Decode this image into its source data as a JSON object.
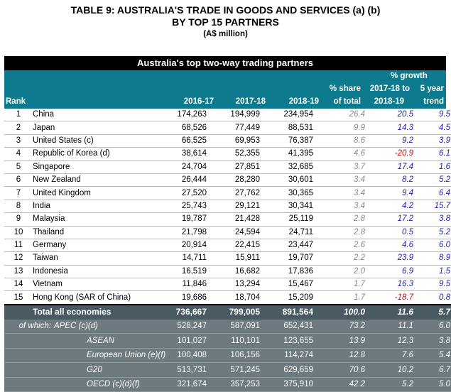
{
  "title": {
    "line1": "TABLE 9: AUSTRALIA'S TRADE IN GOODS AND SERVICES (a) (b)",
    "line2": "BY TOP 15 PARTNERS",
    "unit": "(A$ million)"
  },
  "banner": "Australia's top two-way trading partners",
  "header": {
    "rank": "Rank",
    "y1": "2016-17",
    "y2": "2017-18",
    "y3": "2018-19",
    "share_top": "% share",
    "share_bottom": "of total",
    "growth": "% growth",
    "g1_top": "2017-18 to",
    "g1_bottom": "2018-19",
    "g5_top": "5 year",
    "g5_bottom": "trend"
  },
  "rows": [
    {
      "rank": "1",
      "partner": "China",
      "y1": "174,263",
      "y2": "194,999",
      "y3": "234,954",
      "share": "26.4",
      "g1": "20.5",
      "g5": "9.5"
    },
    {
      "rank": "2",
      "partner": "Japan",
      "y1": "68,526",
      "y2": "77,449",
      "y3": "88,531",
      "share": "9.9",
      "g1": "14.3",
      "g5": "4.5"
    },
    {
      "rank": "3",
      "partner": "United States (c)",
      "y1": "66,525",
      "y2": "69,953",
      "y3": "76,387",
      "share": "8.6",
      "g1": "9.2",
      "g5": "3.9"
    },
    {
      "rank": "4",
      "partner": "Republic of Korea (d)",
      "y1": "38,614",
      "y2": "52,355",
      "y3": "41,395",
      "share": "4.6",
      "g1": "-20.9",
      "g5": "6.1"
    },
    {
      "rank": "5",
      "partner": "Singapore",
      "y1": "24,704",
      "y2": "27,851",
      "y3": "32,685",
      "share": "3.7",
      "g1": "17.4",
      "g5": "1.6"
    },
    {
      "rank": "6",
      "partner": "New Zealand",
      "y1": "26,444",
      "y2": "28,280",
      "y3": "30,601",
      "share": "3.4",
      "g1": "8.2",
      "g5": "5.2"
    },
    {
      "rank": "7",
      "partner": "United Kingdom",
      "y1": "27,520",
      "y2": "27,762",
      "y3": "30,365",
      "share": "3.4",
      "g1": "9.4",
      "g5": "6.4"
    },
    {
      "rank": "8",
      "partner": "India",
      "y1": "25,743",
      "y2": "29,121",
      "y3": "30,341",
      "share": "3.4",
      "g1": "4.2",
      "g5": "15.7"
    },
    {
      "rank": "9",
      "partner": "Malaysia",
      "y1": "19,787",
      "y2": "21,428",
      "y3": "25,119",
      "share": "2.8",
      "g1": "17.2",
      "g5": "3.8"
    },
    {
      "rank": "10",
      "partner": "Thailand",
      "y1": "21,798",
      "y2": "24,594",
      "y3": "24,711",
      "share": "2.8",
      "g1": "0.5",
      "g5": "5.2"
    },
    {
      "rank": "11",
      "partner": "Germany",
      "y1": "20,914",
      "y2": "22,415",
      "y3": "23,447",
      "share": "2.6",
      "g1": "4.6",
      "g5": "6.0"
    },
    {
      "rank": "12",
      "partner": "Taiwan",
      "y1": "14,711",
      "y2": "15,911",
      "y3": "19,707",
      "share": "2.2",
      "g1": "23.9",
      "g5": "8.9"
    },
    {
      "rank": "13",
      "partner": "Indonesia",
      "y1": "16,519",
      "y2": "16,682",
      "y3": "17,836",
      "share": "2.0",
      "g1": "6.9",
      "g5": "1.5"
    },
    {
      "rank": "14",
      "partner": "Vietnam",
      "y1": "11,846",
      "y2": "13,294",
      "y3": "15,467",
      "share": "1.7",
      "g1": "16.3",
      "g5": "9.5"
    },
    {
      "rank": "15",
      "partner": "Hong Kong (SAR of China)",
      "y1": "19,686",
      "y2": "18,704",
      "y3": "15,209",
      "share": "1.7",
      "g1": "-18.7",
      "g5": "0.8"
    }
  ],
  "total": {
    "label": "Total all economies",
    "y1": "736,667",
    "y2": "799,005",
    "y3": "891,564",
    "share": "100.0",
    "g1": "11.6",
    "g5": "5.7"
  },
  "groups": [
    {
      "prefix": "of which:",
      "label": "APEC (c)(d)",
      "y1": "528,247",
      "y2": "587,091",
      "y3": "652,431",
      "share": "73.2",
      "g1": "11.1",
      "g5": "6.0"
    },
    {
      "prefix": "",
      "label": "ASEAN",
      "y1": "101,027",
      "y2": "110,101",
      "y3": "123,655",
      "share": "13.9",
      "g1": "12.3",
      "g5": "3.8"
    },
    {
      "prefix": "",
      "label": "European Union (e)(f)",
      "y1": "100,408",
      "y2": "106,156",
      "y3": "114,274",
      "share": "12.8",
      "g1": "7.6",
      "g5": "5.4"
    },
    {
      "prefix": "",
      "label": "G20",
      "y1": "513,731",
      "y2": "571,245",
      "y3": "629,659",
      "share": "70.6",
      "g1": "10.2",
      "g5": "6.7"
    },
    {
      "prefix": "",
      "label": "OECD (c)(d)(f)",
      "y1": "321,674",
      "y2": "357,253",
      "y3": "375,910",
      "share": "42.2",
      "g1": "5.2",
      "g5": "5.0"
    }
  ],
  "colors": {
    "header_teal": "#0e7a8e",
    "summary_gray": "#4a5a62",
    "group_gray": "#6e7a80",
    "growth_blue": "#1d1db8",
    "negative_red": "#e10000"
  }
}
